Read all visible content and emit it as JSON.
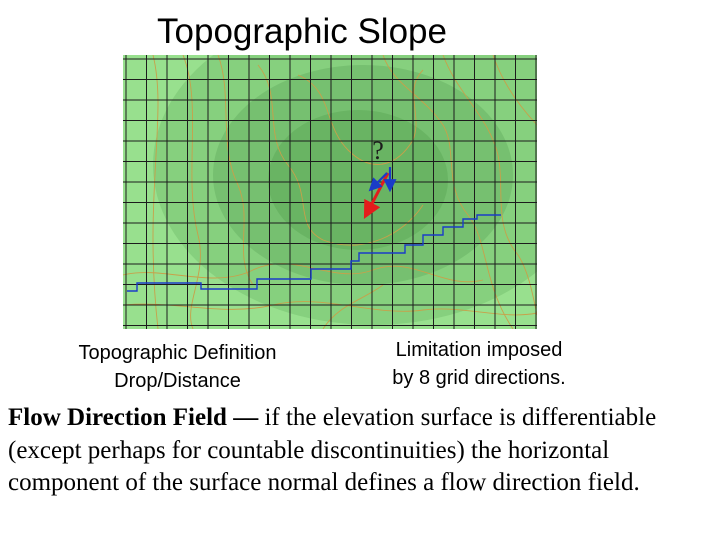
{
  "title": "Topographic Slope",
  "diagram": {
    "question_mark": "?",
    "colors": {
      "outer": "#98e08e",
      "mid": "#86d07e",
      "inner": "#76c070",
      "core": "#69b463",
      "grid": "#1c1c1c",
      "contour": "#c8a04a",
      "blue": "#1a3cc8",
      "red": "#e41c1c"
    }
  },
  "captions": {
    "left_line1": "Topographic Definition",
    "left_line2": "Drop/Distance",
    "right_line1": "Limitation imposed",
    "right_line2": "by 8 grid directions."
  },
  "body": {
    "lead": "Flow Direction Field —",
    "rest": " if the elevation surface is differentiable (except perhaps for countable discontinuities) the horizontal component of the surface normal defines a flow direction field."
  }
}
